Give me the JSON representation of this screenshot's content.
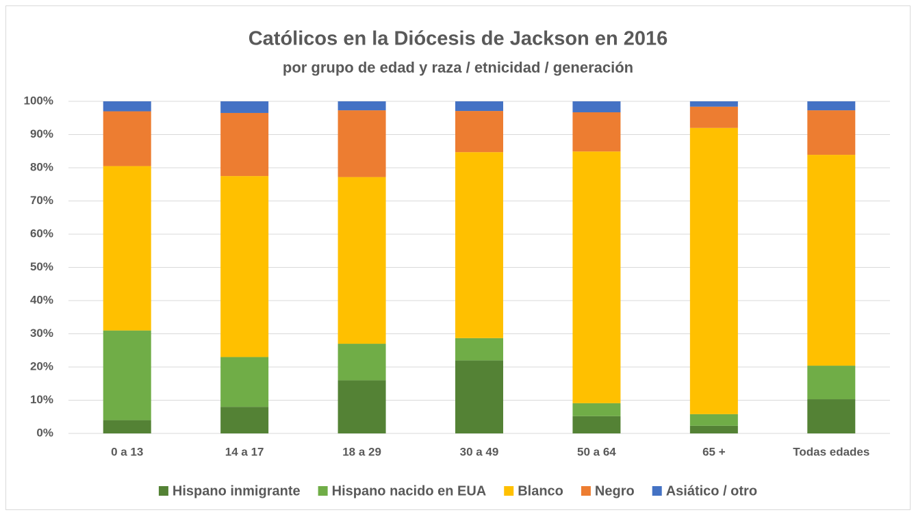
{
  "chart_data": {
    "type": "stacked_bar",
    "title": "Católicos en la Diócesis de Jackson en 2016",
    "subtitle": "por grupo de edad y raza / etnicidad / generación",
    "categories": [
      "0 a 13",
      "14 a 17",
      "18 a 29",
      "30 a 49",
      "50 a 64",
      "65 +",
      "Todas edades"
    ],
    "series": [
      {
        "name": "Hispano inmigrante",
        "color": "#548235",
        "values": [
          4,
          8,
          16,
          22,
          5.2,
          2.3,
          10.3
        ]
      },
      {
        "name": "Hispano nacido en EUA",
        "color": "#70ad47",
        "values": [
          27,
          15,
          11,
          6.7,
          3.9,
          3.5,
          10.1
        ]
      },
      {
        "name": "Blanco",
        "color": "#ffc000",
        "values": [
          49.5,
          54.5,
          50.2,
          56,
          75.8,
          86.2,
          63.5
        ]
      },
      {
        "name": "Negro",
        "color": "#ed7d31",
        "values": [
          16.5,
          19,
          20.1,
          12.4,
          11.8,
          6.4,
          13.4
        ]
      },
      {
        "name": "Asiático / otro",
        "color": "#4472c4",
        "values": [
          3,
          3.5,
          2.7,
          2.9,
          3.3,
          1.6,
          2.7
        ]
      }
    ],
    "ylim": [
      0,
      100
    ],
    "yticks": [
      {
        "value": 0,
        "label": "0%"
      },
      {
        "value": 10,
        "label": "10%"
      },
      {
        "value": 20,
        "label": "20%"
      },
      {
        "value": 30,
        "label": "30%"
      },
      {
        "value": 40,
        "label": "40%"
      },
      {
        "value": 50,
        "label": "50%"
      },
      {
        "value": 60,
        "label": "60%"
      },
      {
        "value": 70,
        "label": "70%"
      },
      {
        "value": 80,
        "label": "80%"
      },
      {
        "value": 90,
        "label": "90%"
      },
      {
        "value": 100,
        "label": "100%"
      }
    ],
    "grid": true,
    "legend": "bottom"
  }
}
